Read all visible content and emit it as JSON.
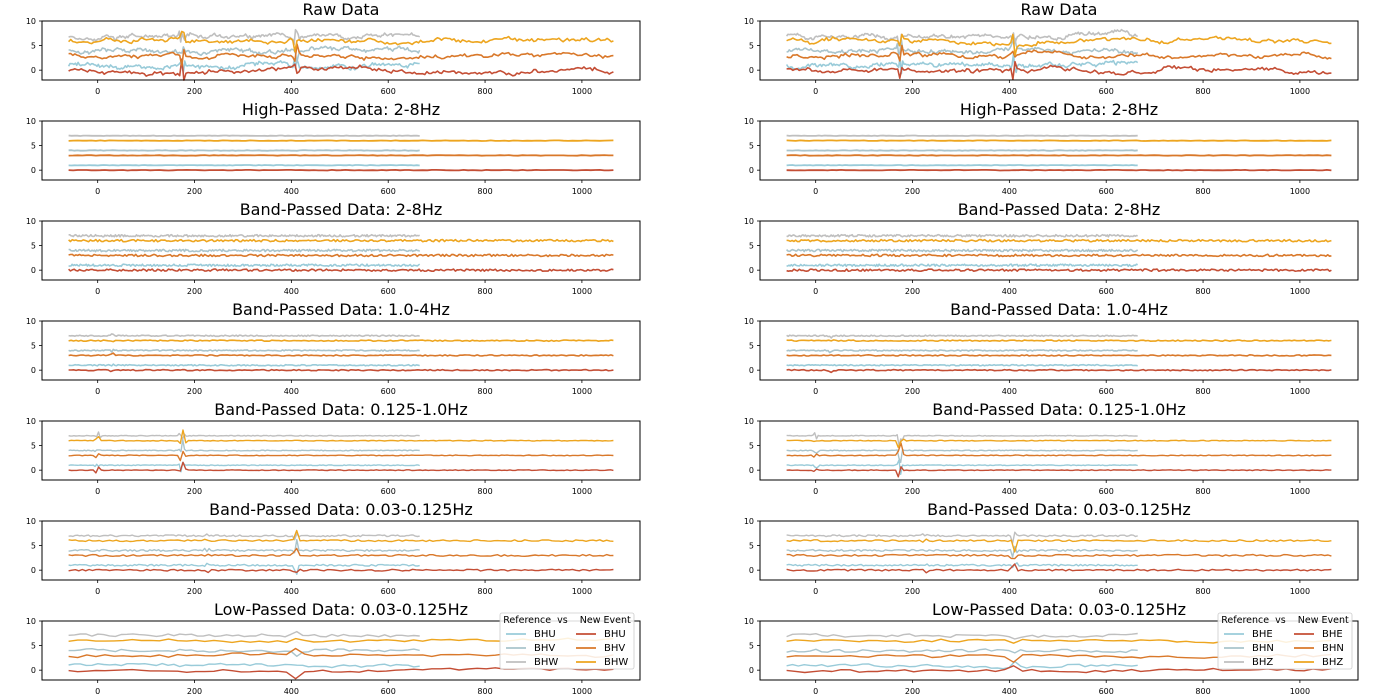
{
  "columns": [
    {
      "panels": [
        {
          "title": "Raw Data",
          "style": "raw"
        },
        {
          "title": "High-Passed Data: 2-8Hz",
          "style": "high"
        },
        {
          "title": "Band-Passed Data: 2-8Hz",
          "style": "band28"
        },
        {
          "title": "Band-Passed Data: 1.0-4Hz",
          "style": "band14"
        },
        {
          "title": "Band-Passed Data: 0.125-1.0Hz",
          "style": "bandlow"
        },
        {
          "title": "Band-Passed Data: 0.03-0.125Hz",
          "style": "bandvlow"
        },
        {
          "title": "Low-Passed Data: 0.03-0.125Hz",
          "style": "low"
        }
      ],
      "legend": {
        "title": "Reference  vs    New Event",
        "reference": [
          "BHU",
          "BHV",
          "BHW"
        ],
        "new_event": [
          "BHU",
          "BHV",
          "BHW"
        ]
      }
    },
    {
      "panels": [
        {
          "title": "Raw Data",
          "style": "raw"
        },
        {
          "title": "High-Passed Data: 2-8Hz",
          "style": "high"
        },
        {
          "title": "Band-Passed Data: 2-8Hz",
          "style": "band28"
        },
        {
          "title": "Band-Passed Data: 1.0-4Hz",
          "style": "band14"
        },
        {
          "title": "Band-Passed Data: 0.125-1.0Hz",
          "style": "bandlow"
        },
        {
          "title": "Band-Passed Data: 0.03-0.125Hz",
          "style": "bandvlow"
        },
        {
          "title": "Low-Passed Data: 0.03-0.125Hz",
          "style": "low"
        }
      ],
      "legend": {
        "title": "Reference  vs    New Event",
        "reference": [
          "BHE",
          "BHN",
          "BHZ"
        ],
        "new_event": [
          "BHE",
          "BHN",
          "BHZ"
        ]
      }
    }
  ],
  "chart_data": {
    "type": "line",
    "xlim": [
      -115,
      1120
    ],
    "ylim": [
      -2,
      10
    ],
    "xticks": [
      0,
      200,
      400,
      600,
      800,
      1000
    ],
    "yticks": [
      0,
      5,
      10
    ],
    "reference_x_range": [
      -60,
      665
    ],
    "new_event_x_range": [
      -60,
      1065
    ],
    "series": [
      {
        "group": "reference",
        "component": 1,
        "offset": 1,
        "color": "#99cbd9"
      },
      {
        "group": "reference",
        "component": 2,
        "offset": 4,
        "color": "#a9c4cc"
      },
      {
        "group": "reference",
        "component": 3,
        "offset": 7,
        "color": "#bfbfbf"
      },
      {
        "group": "new_event",
        "component": 1,
        "offset": 0,
        "color": "#c44e35"
      },
      {
        "group": "new_event",
        "component": 2,
        "offset": 3,
        "color": "#d9782a"
      },
      {
        "group": "new_event",
        "component": 3,
        "offset": 6,
        "color": "#eda51f"
      }
    ],
    "grid": false,
    "legend_location": "lower-right of bottom panel"
  }
}
